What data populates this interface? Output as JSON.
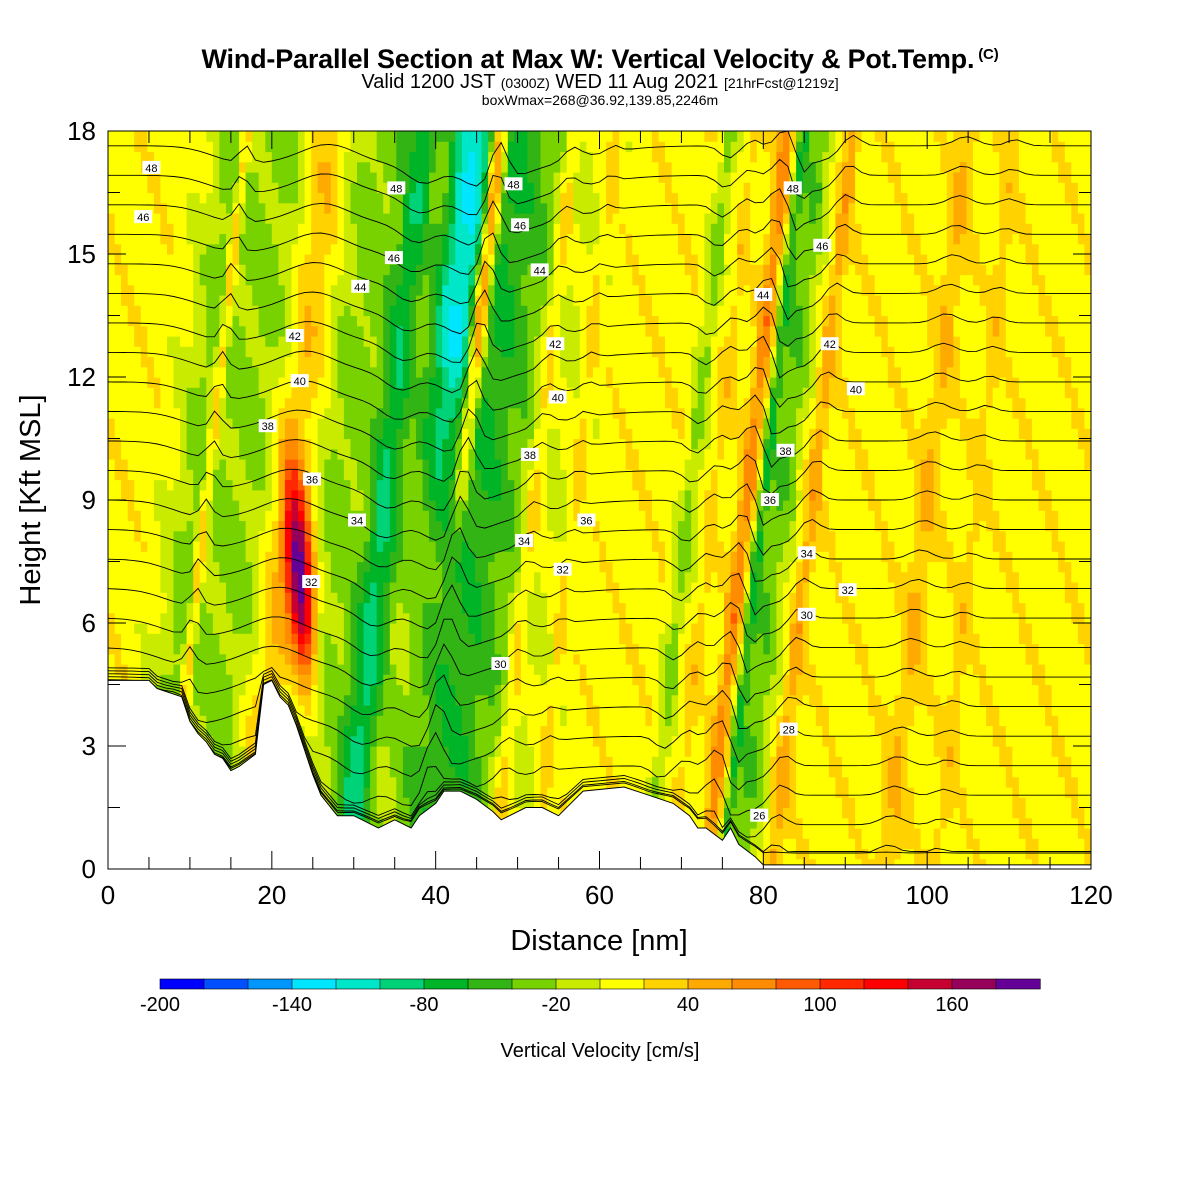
{
  "header": {
    "title": "Wind-Parallel Section at Max W: Vertical Velocity & Pot.Temp.",
    "copyright": "(C)",
    "valid_prefix": "Valid 1200 JST",
    "valid_utc": "(0300Z)",
    "valid_date": "WED 11 Aug 2021",
    "forecast": "[21hrFcst@1219z]",
    "box_info": "boxWmax=268@36.92,139.85,2246m"
  },
  "chart_data": {
    "type": "heatmap",
    "xlabel": "Distance [nm]",
    "ylabel": "Height [Kft MSL]",
    "xlim": [
      0,
      120
    ],
    "ylim": [
      0,
      18
    ],
    "x_ticks": [
      0,
      20,
      40,
      60,
      80,
      100,
      120
    ],
    "y_ticks": [
      0,
      3,
      6,
      9,
      12,
      15,
      18
    ],
    "colorbar": {
      "label": "Vertical Velocity [cm/s]",
      "range": [
        -200,
        200
      ],
      "step": 20,
      "tick_labels": [
        "-200",
        "-140",
        "-80",
        "-20",
        "40",
        "100",
        "160"
      ],
      "tick_values": [
        -200,
        -140,
        -80,
        -20,
        40,
        100,
        160
      ],
      "colors": [
        "#0000ff",
        "#0050ff",
        "#0096ff",
        "#00e6ff",
        "#00e6c8",
        "#00d278",
        "#00b428",
        "#32b414",
        "#78d200",
        "#c8eb00",
        "#ffff00",
        "#ffd200",
        "#ffaa00",
        "#ff8c00",
        "#ff5a00",
        "#ff2800",
        "#ff0000",
        "#c80032",
        "#96005a",
        "#640096"
      ]
    },
    "velocity_bands": [
      {
        "x": 11,
        "w": 10,
        "v": -40
      },
      {
        "x": 12,
        "w": 2,
        "v": 60
      },
      {
        "x": 19,
        "w": 15,
        "v": -50
      },
      {
        "x": 22,
        "w": 10,
        "v": 70
      },
      {
        "x": 28,
        "w": 17,
        "v": -40
      },
      {
        "x": 34,
        "w": 6,
        "v": -80
      },
      {
        "x": 36,
        "w": 9,
        "v": 110
      },
      {
        "x": 38,
        "w": 13,
        "v": -130
      },
      {
        "x": 43,
        "w": 3,
        "v": 140
      },
      {
        "x": 45,
        "w": 22,
        "v": -70
      },
      {
        "x": 52,
        "w": 3,
        "v": 40
      },
      {
        "x": 57,
        "w": 2,
        "v": 20
      },
      {
        "x": 71,
        "w": 3,
        "v": -40
      },
      {
        "x": 74,
        "w": 2,
        "v": 20
      },
      {
        "x": 78,
        "w": 3,
        "v": 60
      },
      {
        "x": 80,
        "w": 2,
        "v": -60
      },
      {
        "x": 82,
        "w": 6,
        "v": -50
      },
      {
        "x": 86,
        "w": 3,
        "v": 40
      },
      {
        "x": 100,
        "w": 4,
        "v": 30
      },
      {
        "x": 106,
        "w": 3,
        "v": 20
      }
    ],
    "updraft_core": {
      "x": 23.5,
      "y_center": 7,
      "v": 200
    },
    "terrain_kft": [
      [
        0,
        4.6
      ],
      [
        5,
        4.6
      ],
      [
        6,
        4.4
      ],
      [
        9,
        4.2
      ],
      [
        10,
        3.6
      ],
      [
        11,
        3.3
      ],
      [
        12,
        3.1
      ],
      [
        13,
        2.8
      ],
      [
        14,
        2.7
      ],
      [
        15,
        2.4
      ],
      [
        16,
        2.5
      ],
      [
        18,
        2.8
      ],
      [
        19,
        4.5
      ],
      [
        20,
        4.6
      ],
      [
        21,
        4.2
      ],
      [
        22,
        4.0
      ],
      [
        23,
        3.5
      ],
      [
        24,
        2.9
      ],
      [
        25,
        2.3
      ],
      [
        26,
        1.8
      ],
      [
        28,
        1.3
      ],
      [
        30,
        1.3
      ],
      [
        33,
        1.0
      ],
      [
        35,
        1.2
      ],
      [
        37,
        1.0
      ],
      [
        38,
        1.3
      ],
      [
        40,
        1.6
      ],
      [
        41,
        1.9
      ],
      [
        43,
        1.9
      ],
      [
        45,
        1.7
      ],
      [
        47,
        1.4
      ],
      [
        48,
        1.2
      ],
      [
        51,
        1.5
      ],
      [
        53,
        1.5
      ],
      [
        55,
        1.3
      ],
      [
        58,
        1.9
      ],
      [
        63,
        2.0
      ],
      [
        66,
        1.8
      ],
      [
        69,
        1.6
      ],
      [
        71,
        1.3
      ],
      [
        72,
        1.0
      ],
      [
        73,
        1.0
      ],
      [
        75,
        0.7
      ],
      [
        76,
        1.0
      ],
      [
        77,
        0.6
      ],
      [
        79,
        0.3
      ],
      [
        80,
        0.1
      ],
      [
        120,
        0.1
      ]
    ],
    "theta_contours": [
      24,
      25,
      26,
      27,
      28,
      29,
      30,
      31,
      32,
      33,
      34,
      35,
      36,
      37,
      38,
      39,
      40,
      41,
      42,
      43,
      44,
      45,
      46,
      47,
      48,
      49
    ],
    "contour_labels": [
      {
        "text": "48",
        "x": 5.3,
        "y": 17.1
      },
      {
        "text": "46",
        "x": 4.3,
        "y": 15.9
      },
      {
        "text": "48",
        "x": 35.2,
        "y": 16.6
      },
      {
        "text": "46",
        "x": 34.9,
        "y": 14.9
      },
      {
        "text": "44",
        "x": 30.8,
        "y": 14.2
      },
      {
        "text": "42",
        "x": 22.8,
        "y": 13.0
      },
      {
        "text": "40",
        "x": 23.4,
        "y": 11.9
      },
      {
        "text": "38",
        "x": 19.5,
        "y": 10.8
      },
      {
        "text": "36",
        "x": 24.9,
        "y": 9.5
      },
      {
        "text": "34",
        "x": 30.4,
        "y": 8.5
      },
      {
        "text": "32",
        "x": 24.8,
        "y": 7.0
      },
      {
        "text": "48",
        "x": 49.5,
        "y": 16.7
      },
      {
        "text": "46",
        "x": 50.3,
        "y": 15.7
      },
      {
        "text": "44",
        "x": 52.7,
        "y": 14.6
      },
      {
        "text": "42",
        "x": 54.6,
        "y": 12.8
      },
      {
        "text": "40",
        "x": 54.9,
        "y": 11.5
      },
      {
        "text": "38",
        "x": 51.5,
        "y": 10.1
      },
      {
        "text": "36",
        "x": 58.4,
        "y": 8.5
      },
      {
        "text": "34",
        "x": 50.8,
        "y": 8.0
      },
      {
        "text": "32",
        "x": 55.5,
        "y": 7.3
      },
      {
        "text": "30",
        "x": 47.9,
        "y": 5.0
      },
      {
        "text": "48",
        "x": 83.6,
        "y": 16.6
      },
      {
        "text": "46",
        "x": 87.2,
        "y": 15.2
      },
      {
        "text": "44",
        "x": 80.0,
        "y": 14.0
      },
      {
        "text": "42",
        "x": 88.1,
        "y": 12.8
      },
      {
        "text": "40",
        "x": 91.3,
        "y": 11.7
      },
      {
        "text": "38",
        "x": 82.7,
        "y": 10.2
      },
      {
        "text": "36",
        "x": 80.8,
        "y": 9.0
      },
      {
        "text": "34",
        "x": 85.3,
        "y": 7.7
      },
      {
        "text": "32",
        "x": 90.3,
        "y": 6.8
      },
      {
        "text": "30",
        "x": 85.3,
        "y": 6.2
      },
      {
        "text": "28",
        "x": 83.1,
        "y": 3.4
      },
      {
        "text": "26",
        "x": 79.5,
        "y": 1.3
      }
    ]
  }
}
